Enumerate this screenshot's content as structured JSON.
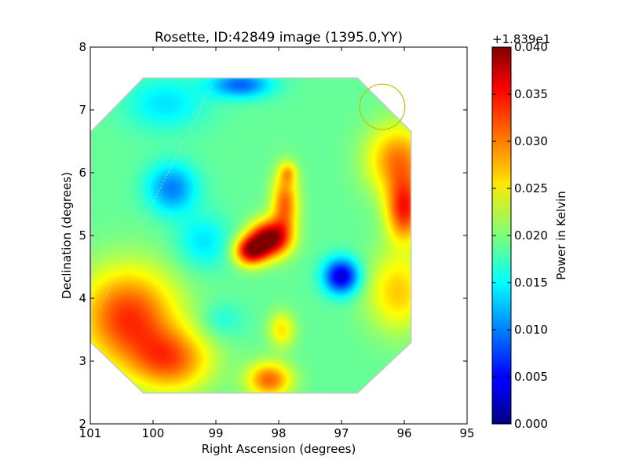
{
  "chart_data": {
    "type": "heatmap",
    "title": "Rosette, ID:42849 image (1395.0,YY)",
    "xlabel": "Right Ascension (degrees)",
    "ylabel": "Declination (degrees)",
    "xlim": [
      101,
      95
    ],
    "ylim": [
      2,
      8
    ],
    "x_ticks": [
      101,
      100,
      99,
      98,
      97,
      96,
      95
    ],
    "y_ticks": [
      2,
      3,
      4,
      5,
      6,
      7,
      8
    ],
    "x_tick_labels": [
      "101",
      "100",
      "99",
      "98",
      "97",
      "96",
      "95"
    ],
    "y_tick_labels": [
      "2",
      "3",
      "4",
      "5",
      "6",
      "7",
      "8"
    ],
    "colorbar": {
      "label": "Power in Kelvin",
      "offset_text": "+1.839e1",
      "range": [
        0.0,
        0.04
      ],
      "ticks": [
        0.0,
        0.005,
        0.01,
        0.015,
        0.02,
        0.025,
        0.03,
        0.035,
        0.04
      ],
      "tick_labels": [
        "0.000",
        "0.005",
        "0.010",
        "0.015",
        "0.020",
        "0.025",
        "0.030",
        "0.035",
        "0.040"
      ],
      "colormap": "jet"
    },
    "background_level": 0.019,
    "map_outline_ra_dec": [
      [
        100.15,
        7.5
      ],
      [
        96.75,
        7.5
      ],
      [
        95.9,
        6.65
      ],
      [
        95.9,
        3.3
      ],
      [
        96.75,
        2.5
      ],
      [
        100.15,
        2.5
      ],
      [
        100.98,
        3.3
      ],
      [
        100.98,
        6.65
      ]
    ],
    "features": [
      {
        "ra": 98.15,
        "dec": 4.95,
        "level": 0.04,
        "sigma_ra": 0.22,
        "sigma_dec": 0.2,
        "note": "hot spot"
      },
      {
        "ra": 98.45,
        "dec": 4.75,
        "level": 0.036,
        "sigma_ra": 0.18,
        "sigma_dec": 0.16
      },
      {
        "ra": 97.9,
        "dec": 5.5,
        "level": 0.031,
        "sigma_ra": 0.15,
        "sigma_dec": 0.35
      },
      {
        "ra": 97.85,
        "dec": 6.0,
        "level": 0.025,
        "sigma_ra": 0.1,
        "sigma_dec": 0.12
      },
      {
        "ra": 97.0,
        "dec": 4.35,
        "level": 0.003,
        "sigma_ra": 0.2,
        "sigma_dec": 0.2,
        "note": "cold spot"
      },
      {
        "ra": 99.7,
        "dec": 5.75,
        "level": 0.01,
        "sigma_ra": 0.28,
        "sigma_dec": 0.28
      },
      {
        "ra": 98.6,
        "dec": 7.4,
        "level": 0.009,
        "sigma_ra": 0.35,
        "sigma_dec": 0.15
      },
      {
        "ra": 99.8,
        "dec": 7.1,
        "level": 0.014,
        "sigma_ra": 0.45,
        "sigma_dec": 0.3
      },
      {
        "ra": 100.4,
        "dec": 3.7,
        "level": 0.033,
        "sigma_ra": 0.55,
        "sigma_dec": 0.55
      },
      {
        "ra": 99.7,
        "dec": 3.0,
        "level": 0.03,
        "sigma_ra": 0.45,
        "sigma_dec": 0.35
      },
      {
        "ra": 96.0,
        "dec": 5.4,
        "level": 0.033,
        "sigma_ra": 0.2,
        "sigma_dec": 0.35
      },
      {
        "ra": 96.1,
        "dec": 6.2,
        "level": 0.03,
        "sigma_ra": 0.35,
        "sigma_dec": 0.4
      },
      {
        "ra": 96.1,
        "dec": 4.1,
        "level": 0.027,
        "sigma_ra": 0.35,
        "sigma_dec": 0.45
      },
      {
        "ra": 98.15,
        "dec": 2.7,
        "level": 0.031,
        "sigma_ra": 0.25,
        "sigma_dec": 0.2
      },
      {
        "ra": 97.95,
        "dec": 3.5,
        "level": 0.026,
        "sigma_ra": 0.15,
        "sigma_dec": 0.2
      },
      {
        "ra": 98.9,
        "dec": 3.65,
        "level": 0.016,
        "sigma_ra": 0.25,
        "sigma_dec": 0.2
      },
      {
        "ra": 99.2,
        "dec": 4.9,
        "level": 0.014,
        "sigma_ra": 0.3,
        "sigma_dec": 0.3
      }
    ],
    "dotted_track_ra_dec": [
      [
        100.85,
        3.85
      ],
      [
        99.05,
        7.4
      ]
    ],
    "beam_circle": {
      "ra": 96.35,
      "dec": 7.05,
      "radius_deg": 0.36
    }
  }
}
